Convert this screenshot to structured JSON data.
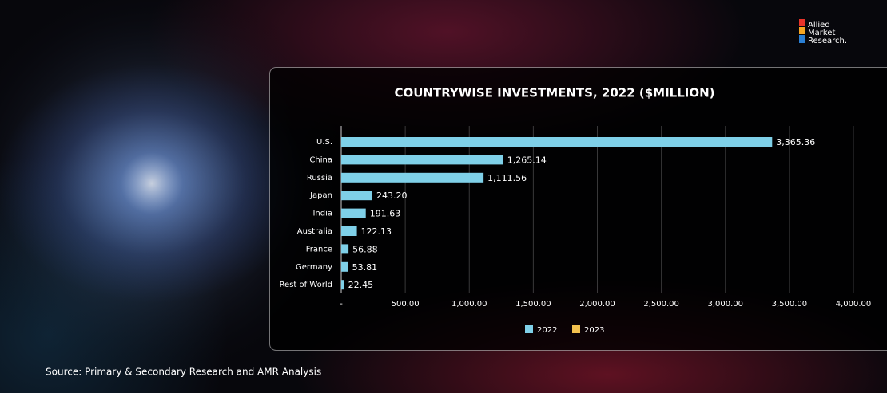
{
  "logo": {
    "lines": [
      "Allied",
      "Market",
      "Research."
    ]
  },
  "source": "Source: Primary & Secondary Research and AMR Analysis",
  "chart_data": {
    "type": "bar",
    "orientation": "horizontal",
    "title": "COUNTRYWISE INVESTMENTS, 2022 ($MILLION)",
    "categories": [
      "U.S.",
      "China",
      "Russia",
      "Japan",
      "India",
      "Australia",
      "France",
      "Germany",
      "Rest of World"
    ],
    "series": [
      {
        "name": "2022",
        "color": "#7fd0e8",
        "values": [
          3365.36,
          1265.14,
          1111.56,
          243.2,
          191.63,
          122.13,
          56.88,
          53.81,
          22.45
        ],
        "value_labels": [
          "3,365.36",
          "1,265.14",
          "1,111.56",
          "243.20",
          "191.63",
          "122.13",
          "56.88",
          "53.81",
          "22.45"
        ]
      },
      {
        "name": "2023",
        "color": "#f2c14e",
        "values": [
          null,
          null,
          null,
          null,
          null,
          null,
          null,
          null,
          null
        ]
      }
    ],
    "xlim": [
      0,
      4000
    ],
    "xticks": [
      {
        "value": 0,
        "label": "-"
      },
      {
        "value": 500,
        "label": "500.00"
      },
      {
        "value": 1000,
        "label": "1,000.00"
      },
      {
        "value": 1500,
        "label": "1,500.00"
      },
      {
        "value": 2000,
        "label": "2,000.00"
      },
      {
        "value": 2500,
        "label": "2,500.00"
      },
      {
        "value": 3000,
        "label": "3,000.00"
      },
      {
        "value": 3500,
        "label": "3,500.00"
      },
      {
        "value": 4000,
        "label": "4,000.00"
      }
    ],
    "grid": true,
    "legend": "bottom"
  }
}
